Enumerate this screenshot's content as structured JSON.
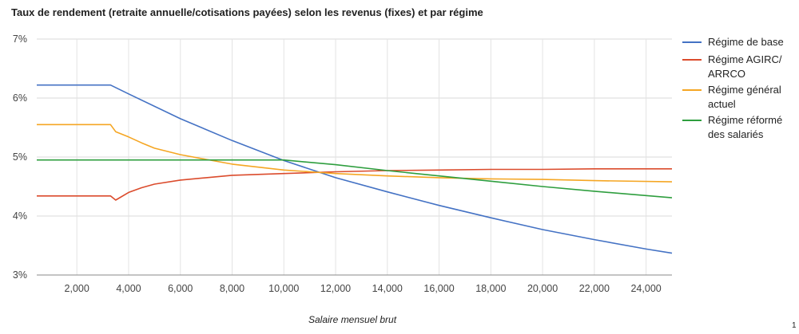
{
  "chart_data": {
    "type": "line",
    "title": "Taux de rendement (retraite annuelle/cotisations payées) selon les revenus (fixes) et par régime",
    "xlabel": "Salaire mensuel brut",
    "ylabel": "",
    "xlim": [
      450,
      25000
    ],
    "ylim": [
      3,
      7
    ],
    "x_ticks": [
      "2,000",
      "4,000",
      "6,000",
      "8,000",
      "10,000",
      "12,000",
      "14,000",
      "16,000",
      "18,000",
      "20,000",
      "22,000",
      "24,000"
    ],
    "y_ticks": [
      "3%",
      "4%",
      "5%",
      "6%",
      "7%"
    ],
    "grid": true,
    "legend_position": "right",
    "series": [
      {
        "name": "Régime de base",
        "color": "#4472c4",
        "points": [
          [
            450,
            6.22
          ],
          [
            3300,
            6.22
          ],
          [
            4000,
            6.07
          ],
          [
            6000,
            5.65
          ],
          [
            8000,
            5.28
          ],
          [
            10000,
            4.94
          ],
          [
            12000,
            4.65
          ],
          [
            14000,
            4.41
          ],
          [
            16000,
            4.18
          ],
          [
            18000,
            3.97
          ],
          [
            20000,
            3.77
          ],
          [
            22000,
            3.6
          ],
          [
            24000,
            3.44
          ],
          [
            25000,
            3.37
          ]
        ]
      },
      {
        "name": "Régime AGIRC/ ARRCO",
        "color": "#db4b2c",
        "points": [
          [
            450,
            4.34
          ],
          [
            3300,
            4.34
          ],
          [
            3500,
            4.27
          ],
          [
            4000,
            4.4
          ],
          [
            4500,
            4.48
          ],
          [
            5000,
            4.54
          ],
          [
            6000,
            4.61
          ],
          [
            7000,
            4.65
          ],
          [
            8000,
            4.69
          ],
          [
            10000,
            4.72
          ],
          [
            12000,
            4.75
          ],
          [
            14000,
            4.77
          ],
          [
            16000,
            4.78
          ],
          [
            18000,
            4.79
          ],
          [
            20000,
            4.79
          ],
          [
            22000,
            4.8
          ],
          [
            25000,
            4.8
          ]
        ]
      },
      {
        "name": "Régime général actuel",
        "color": "#f5a623",
        "points": [
          [
            450,
            5.55
          ],
          [
            3300,
            5.55
          ],
          [
            3500,
            5.43
          ],
          [
            4000,
            5.34
          ],
          [
            4500,
            5.24
          ],
          [
            5000,
            5.15
          ],
          [
            6000,
            5.04
          ],
          [
            7000,
            4.96
          ],
          [
            8000,
            4.88
          ],
          [
            10000,
            4.78
          ],
          [
            12000,
            4.72
          ],
          [
            14000,
            4.68
          ],
          [
            16000,
            4.65
          ],
          [
            18000,
            4.63
          ],
          [
            20000,
            4.62
          ],
          [
            22000,
            4.6
          ],
          [
            25000,
            4.58
          ]
        ]
      },
      {
        "name": "Régime réformé des salariés",
        "color": "#2e9e3e",
        "points": [
          [
            450,
            4.95
          ],
          [
            10000,
            4.95
          ],
          [
            12000,
            4.87
          ],
          [
            14000,
            4.77
          ],
          [
            16000,
            4.68
          ],
          [
            18000,
            4.59
          ],
          [
            20000,
            4.5
          ],
          [
            22000,
            4.42
          ],
          [
            25000,
            4.31
          ]
        ]
      }
    ]
  },
  "page_number": "1"
}
